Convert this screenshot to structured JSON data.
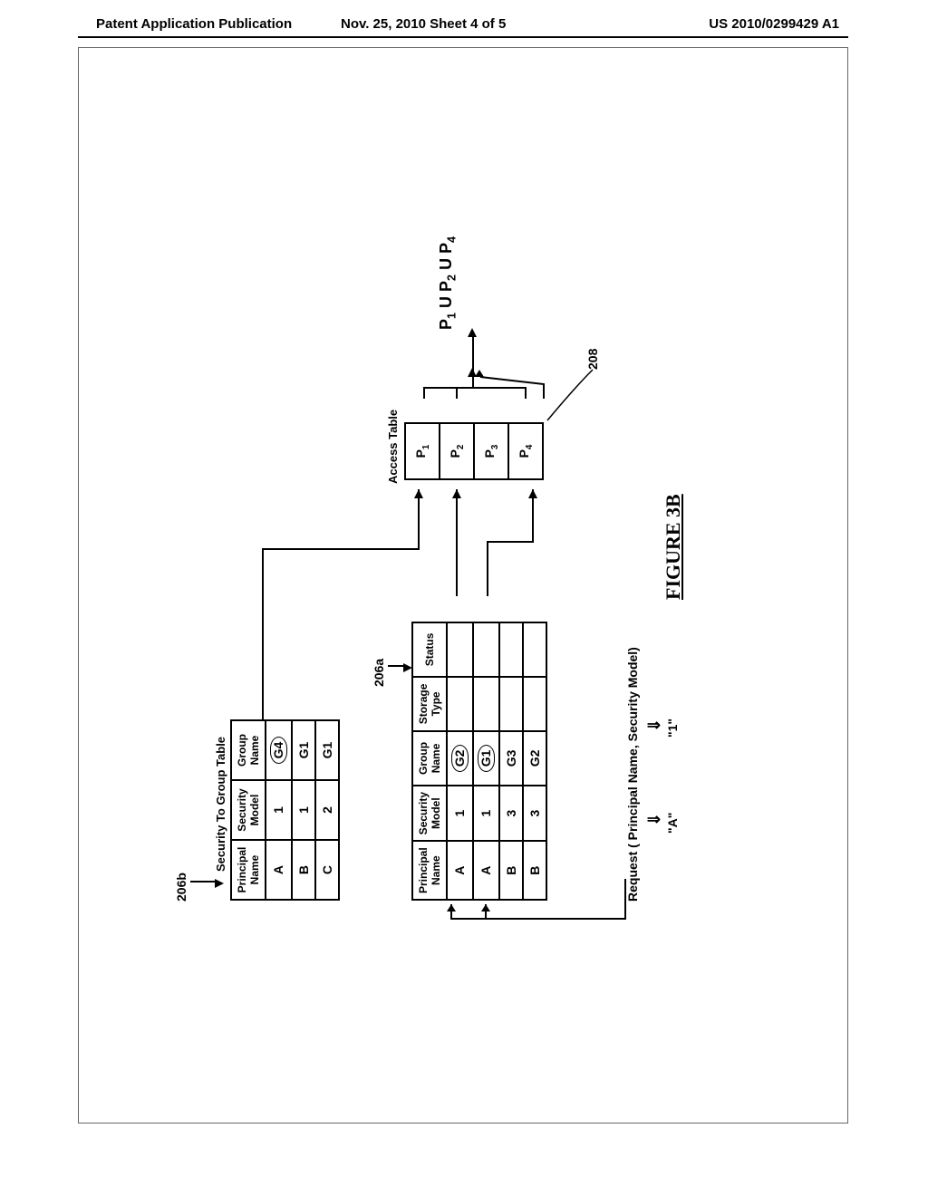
{
  "header": {
    "left": "Patent Application Publication",
    "mid": "Nov. 25, 2010  Sheet 4 of 5",
    "right": "US 2010/0299429 A1"
  },
  "labels": {
    "l206b": "206b",
    "l206a": "206a",
    "l208": "208",
    "sec_group_title": "Security To Group Table",
    "access_title": "Access Table",
    "figure": "FIGURE 3B"
  },
  "table_b": {
    "headers": [
      "Principal Name",
      "Security Model",
      "Group Name"
    ],
    "rows": [
      [
        "A",
        "1",
        "G4"
      ],
      [
        "B",
        "1",
        "G1"
      ],
      [
        "C",
        "2",
        "G1"
      ]
    ],
    "circled_idx": 0
  },
  "table_a": {
    "headers": [
      "Principal Name",
      "Security Model",
      "Group Name",
      "Storage Type",
      "Status"
    ],
    "rows": [
      [
        "A",
        "1",
        "G2",
        "",
        ""
      ],
      [
        "A",
        "1",
        "G1",
        "",
        ""
      ],
      [
        "B",
        "3",
        "G3",
        "",
        ""
      ],
      [
        "B",
        "3",
        "G2",
        "",
        ""
      ]
    ],
    "circled_rows": [
      0,
      1
    ]
  },
  "access_table": {
    "rows": [
      "P1",
      "P2",
      "P3",
      "P4"
    ]
  },
  "union": {
    "text_parts": [
      "P",
      "1",
      " U P",
      "2",
      " U P",
      "4"
    ]
  },
  "request": {
    "line": "Request ( Principal Name, Security Model)",
    "arg1": "\"A\"",
    "arg2": "\"1\""
  }
}
